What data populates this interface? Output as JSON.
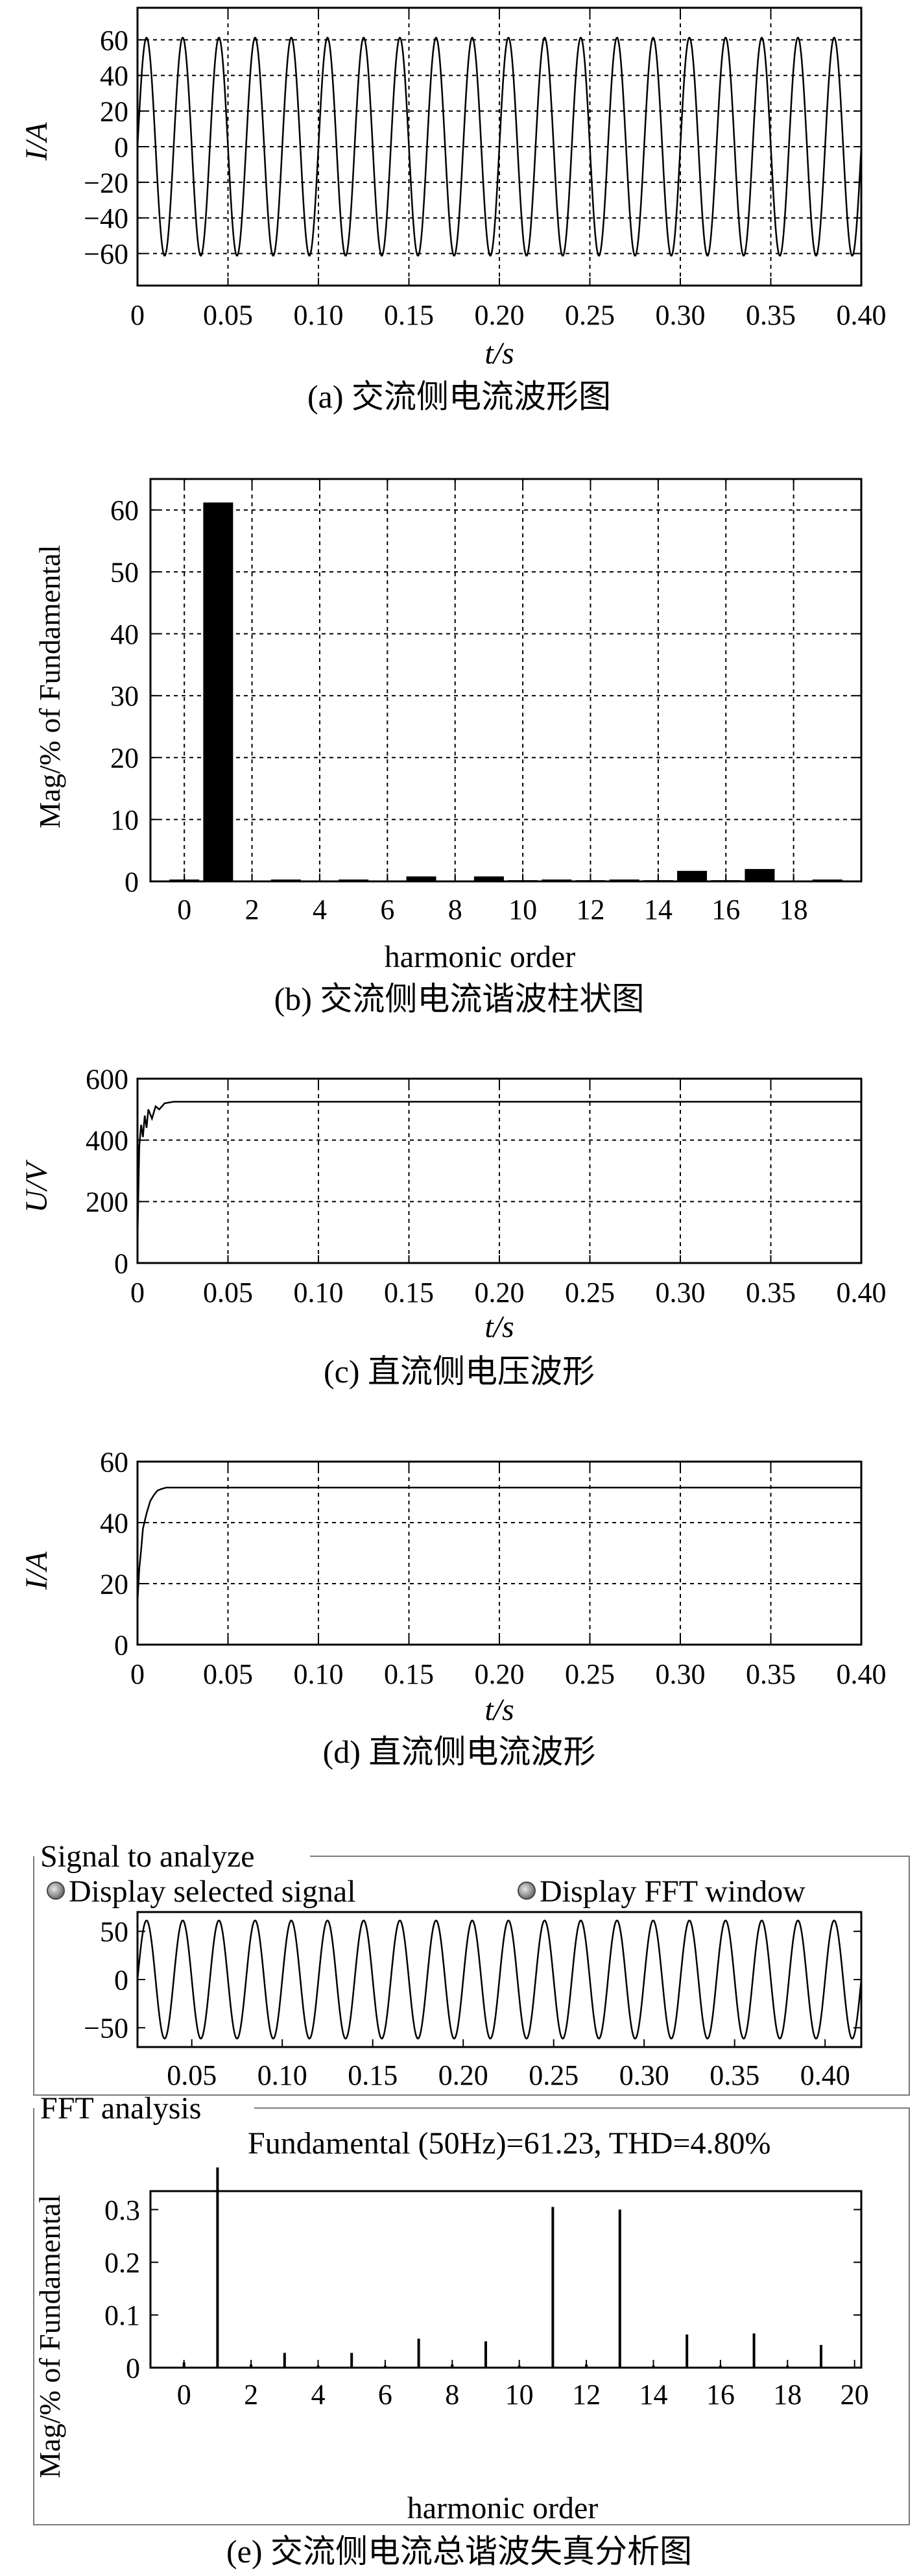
{
  "chart_data": [
    {
      "id": "a",
      "type": "line",
      "caption": "(a) 交流侧电流波形图",
      "xlabel": "t/s",
      "ylabel": "I/A",
      "xlim": [
        0,
        0.4
      ],
      "ylim": [
        -78,
        78
      ],
      "xticks": [
        0,
        0.05,
        0.1,
        0.15,
        0.2,
        0.25,
        0.3,
        0.35,
        0.4
      ],
      "xtick_labels": [
        "0",
        "0.05",
        "0.10",
        "0.15",
        "0.20",
        "0.25",
        "0.30",
        "0.35",
        "0.40"
      ],
      "yticks": [
        60,
        40,
        20,
        0,
        -20,
        -40,
        -60
      ],
      "ytick_labels": [
        "60",
        "40",
        "20",
        "0",
        "−20",
        "−40",
        "−60"
      ],
      "grid": true,
      "series": [
        {
          "kind": "sine",
          "amplitude": 61.23,
          "frequency_hz": 50
        }
      ]
    },
    {
      "id": "b",
      "type": "bar",
      "caption": "(b) 交流侧电流谐波柱状图",
      "xlabel": "harmonic order",
      "ylabel": "Mag/% of Fundamental",
      "xlim": [
        -1,
        20
      ],
      "ylim": [
        0,
        65
      ],
      "xticks": [
        0,
        2,
        4,
        6,
        8,
        10,
        12,
        14,
        16,
        18
      ],
      "xtick_labels": [
        "0",
        "2",
        "4",
        "6",
        "8",
        "10",
        "12",
        "14",
        "16",
        "18"
      ],
      "yticks": [
        0,
        10,
        20,
        30,
        40,
        50,
        60
      ],
      "ytick_labels": [
        "0",
        "10",
        "20",
        "30",
        "40",
        "50",
        "60"
      ],
      "grid": true,
      "categories": [
        0,
        1,
        2,
        3,
        4,
        5,
        6,
        7,
        8,
        9,
        10,
        11,
        12,
        13,
        14,
        15,
        16,
        17,
        18,
        19
      ],
      "values": [
        0.3,
        61.2,
        0.1,
        0.3,
        0.1,
        0.3,
        0.1,
        0.8,
        0.1,
        0.8,
        0.2,
        0.3,
        0.2,
        0.3,
        0.2,
        1.7,
        0.2,
        2.0,
        0.1,
        0.3
      ]
    },
    {
      "id": "c",
      "type": "line",
      "caption": "(c) 直流侧电压波形",
      "xlabel": "t/s",
      "ylabel": "U/V",
      "xlim": [
        0,
        0.4
      ],
      "ylim": [
        0,
        600
      ],
      "xticks": [
        0,
        0.05,
        0.1,
        0.15,
        0.2,
        0.25,
        0.3,
        0.35,
        0.4
      ],
      "xtick_labels": [
        "0",
        "0.05",
        "0.10",
        "0.15",
        "0.20",
        "0.25",
        "0.30",
        "0.35",
        "0.40"
      ],
      "yticks": [
        0,
        200,
        400,
        600
      ],
      "ytick_labels": [
        "0",
        "200",
        "400",
        "600"
      ],
      "grid": true,
      "series": [
        {
          "x": [
            0,
            0.001,
            0.002,
            0.003,
            0.004,
            0.005,
            0.006,
            0.008,
            0.01,
            0.012,
            0.015,
            0.02,
            0.4
          ],
          "y": [
            80,
            380,
            450,
            410,
            480,
            440,
            500,
            470,
            510,
            500,
            520,
            525,
            525
          ]
        }
      ]
    },
    {
      "id": "d",
      "type": "line",
      "caption": "(d) 直流侧电流波形",
      "xlabel": "t/s",
      "ylabel": "I/A",
      "xlim": [
        0,
        0.4
      ],
      "ylim": [
        0,
        60
      ],
      "xticks": [
        0,
        0.05,
        0.1,
        0.15,
        0.2,
        0.25,
        0.3,
        0.35,
        0.4
      ],
      "xtick_labels": [
        "0",
        "0.05",
        "0.10",
        "0.15",
        "0.20",
        "0.25",
        "0.30",
        "0.35",
        "0.40"
      ],
      "yticks": [
        0,
        20,
        40,
        60
      ],
      "ytick_labels": [
        "0",
        "20",
        "40",
        "60"
      ],
      "grid": true,
      "series": [
        {
          "x": [
            0,
            0.001,
            0.002,
            0.003,
            0.005,
            0.007,
            0.009,
            0.011,
            0.013,
            0.016,
            0.4
          ],
          "y": [
            14,
            25,
            31,
            38,
            43,
            47,
            49,
            50.5,
            51,
            51.5,
            51.5
          ]
        }
      ]
    },
    {
      "id": "e1",
      "type": "line",
      "panel_title": "Signal to analyze",
      "option_selected": "Display selected signal",
      "option_fft": "Display FFT window",
      "xlim": [
        0.02,
        0.42
      ],
      "ylim": [
        -70,
        70
      ],
      "xticks": [
        0.05,
        0.1,
        0.15,
        0.2,
        0.25,
        0.3,
        0.35,
        0.4
      ],
      "xtick_labels": [
        "0.05",
        "0.10",
        "0.15",
        "0.20",
        "0.25",
        "0.30",
        "0.35",
        "0.40"
      ],
      "yticks": [
        50,
        0,
        -50
      ],
      "ytick_labels": [
        "50",
        "0",
        "−50"
      ],
      "grid": false,
      "series": [
        {
          "kind": "sine",
          "amplitude": 61.23,
          "frequency_hz": 50
        }
      ]
    },
    {
      "id": "e2",
      "type": "bar",
      "panel_title": "FFT analysis",
      "annotation": "Fundamental (50Hz)=61.23, THD=4.80%",
      "caption": "(e) 交流侧电流总谐波失真分析图",
      "xlabel": "harmonic order",
      "ylabel": "Mag/% of Fundamental",
      "xlim": [
        -1,
        20.2
      ],
      "ylim": [
        0,
        0.335
      ],
      "xticks": [
        0,
        2,
        4,
        6,
        8,
        10,
        12,
        14,
        16,
        18,
        20
      ],
      "xtick_labels": [
        "0",
        "2",
        "4",
        "6",
        "8",
        "10",
        "12",
        "14",
        "16",
        "18",
        "20"
      ],
      "yticks": [
        0,
        0.1,
        0.2,
        0.3
      ],
      "ytick_labels": [
        "0",
        "0.1",
        "0.2",
        "0.3"
      ],
      "grid": false,
      "x": [
        0,
        1,
        2,
        3,
        4,
        5,
        6,
        7,
        8,
        9,
        10,
        11,
        12,
        13,
        14,
        15,
        16,
        17,
        18,
        19
      ],
      "values": [
        0.01,
        0.38,
        0.006,
        0.028,
        0.004,
        0.028,
        0.004,
        0.055,
        0.006,
        0.05,
        0.004,
        0.305,
        0.006,
        0.3,
        0.004,
        0.063,
        0.004,
        0.065,
        0.004,
        0.043
      ]
    }
  ]
}
